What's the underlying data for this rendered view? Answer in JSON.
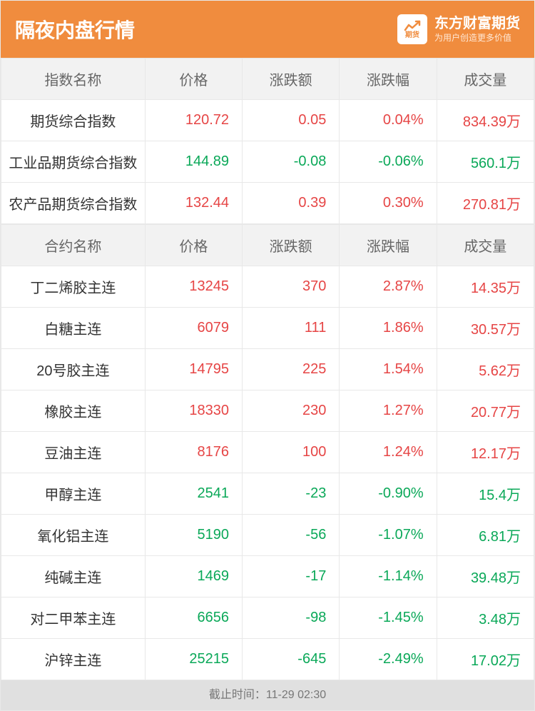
{
  "header": {
    "title": "隔夜内盘行情",
    "brand_name": "东方财富期货",
    "brand_slogan": "为用户创造更多价值",
    "brand_icon_text": "期货"
  },
  "colors": {
    "header_bg": "#f08c3e",
    "header_text": "#ffffff",
    "th_bg": "#f2f2f2",
    "th_text": "#666666",
    "border": "#e8e8e8",
    "up": "#e64545",
    "down": "#0aa858",
    "name_text": "#333333",
    "footer_bg": "#e0e0e0",
    "footer_text": "#777777"
  },
  "index_table": {
    "columns": [
      "指数名称",
      "价格",
      "涨跌额",
      "涨跌幅",
      "成交量"
    ],
    "rows": [
      {
        "name": "期货综合指数",
        "price": "120.72",
        "chg": "0.05",
        "pct": "0.04%",
        "vol": "834.39万",
        "dir": "up"
      },
      {
        "name": "工业品期货综合指数",
        "price": "144.89",
        "chg": "-0.08",
        "pct": "-0.06%",
        "vol": "560.1万",
        "dir": "down"
      },
      {
        "name": "农产品期货综合指数",
        "price": "132.44",
        "chg": "0.39",
        "pct": "0.30%",
        "vol": "270.81万",
        "dir": "up"
      }
    ]
  },
  "contract_table": {
    "columns": [
      "合约名称",
      "价格",
      "涨跌额",
      "涨跌幅",
      "成交量"
    ],
    "rows": [
      {
        "name": "丁二烯胶主连",
        "price": "13245",
        "chg": "370",
        "pct": "2.87%",
        "vol": "14.35万",
        "dir": "up"
      },
      {
        "name": "白糖主连",
        "price": "6079",
        "chg": "111",
        "pct": "1.86%",
        "vol": "30.57万",
        "dir": "up"
      },
      {
        "name": "20号胶主连",
        "price": "14795",
        "chg": "225",
        "pct": "1.54%",
        "vol": "5.62万",
        "dir": "up"
      },
      {
        "name": "橡胶主连",
        "price": "18330",
        "chg": "230",
        "pct": "1.27%",
        "vol": "20.77万",
        "dir": "up"
      },
      {
        "name": "豆油主连",
        "price": "8176",
        "chg": "100",
        "pct": "1.24%",
        "vol": "12.17万",
        "dir": "up"
      },
      {
        "name": "甲醇主连",
        "price": "2541",
        "chg": "-23",
        "pct": "-0.90%",
        "vol": "15.4万",
        "dir": "down"
      },
      {
        "name": "氧化铝主连",
        "price": "5190",
        "chg": "-56",
        "pct": "-1.07%",
        "vol": "6.81万",
        "dir": "down"
      },
      {
        "name": "纯碱主连",
        "price": "1469",
        "chg": "-17",
        "pct": "-1.14%",
        "vol": "39.48万",
        "dir": "down"
      },
      {
        "name": "对二甲苯主连",
        "price": "6656",
        "chg": "-98",
        "pct": "-1.45%",
        "vol": "3.48万",
        "dir": "down"
      },
      {
        "name": "沪锌主连",
        "price": "25215",
        "chg": "-645",
        "pct": "-2.49%",
        "vol": "17.02万",
        "dir": "down"
      }
    ]
  },
  "footer": {
    "label": "截止时间：",
    "time": "11-29 02:30"
  }
}
